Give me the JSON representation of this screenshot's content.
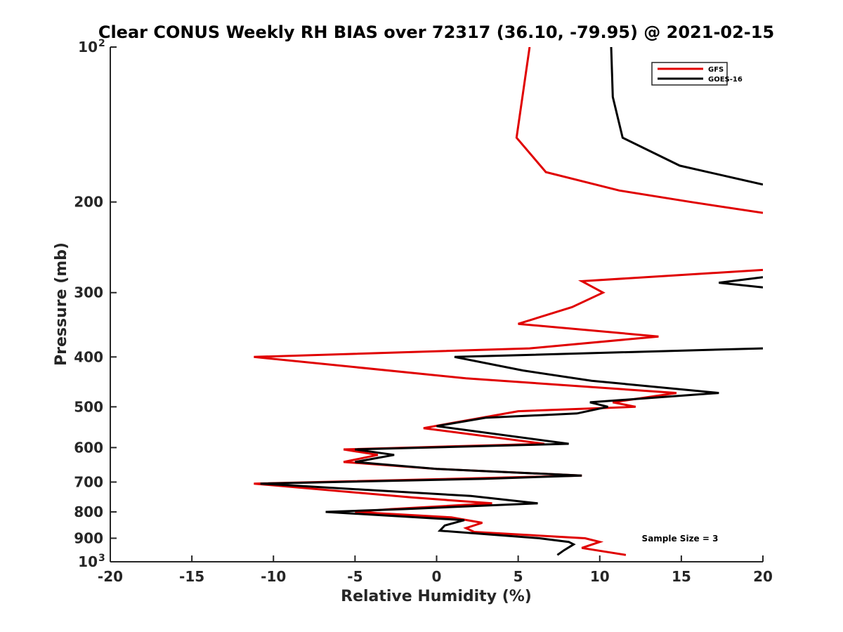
{
  "chart_data": {
    "type": "line",
    "title": "Clear CONUS Weekly RH BIAS over 72317 (36.10, -79.95) @ 2021-02-15",
    "xlabel": "Relative Humidity (%)",
    "ylabel": "Pressure (mb)",
    "xlim": [
      -20,
      20
    ],
    "ylim": [
      100,
      1000
    ],
    "y_scale": "log",
    "y_reversed": true,
    "grid": false,
    "legend_position": "top-right",
    "x_ticks": [
      "-20",
      "-15",
      "-10",
      "-5",
      "0",
      "5",
      "10",
      "15",
      "20"
    ],
    "y_ticks": [
      {
        "value": 100,
        "label": "10",
        "sup": "2"
      },
      {
        "value": 200,
        "label": "200",
        "sup": ""
      },
      {
        "value": 300,
        "label": "300",
        "sup": ""
      },
      {
        "value": 400,
        "label": "400",
        "sup": ""
      },
      {
        "value": 500,
        "label": "500",
        "sup": ""
      },
      {
        "value": 600,
        "label": "600",
        "sup": ""
      },
      {
        "value": 700,
        "label": "700",
        "sup": ""
      },
      {
        "value": 800,
        "label": "800",
        "sup": ""
      },
      {
        "value": 900,
        "label": "900",
        "sup": ""
      },
      {
        "value": 1000,
        "label": "10",
        "sup": "3"
      }
    ],
    "series": [
      {
        "name": "GFS",
        "color": "#e00000",
        "points": [
          [
            5.7,
            100
          ],
          [
            4.9,
            150
          ],
          [
            6.7,
            175
          ],
          [
            11.2,
            190
          ],
          [
            15.6,
            200
          ],
          [
            20.0,
            210
          ],
          [
            null,
            null
          ],
          [
            20.0,
            271
          ],
          [
            8.9,
            285
          ],
          [
            10.2,
            300
          ],
          [
            8.3,
            320
          ],
          [
            5.0,
            345
          ],
          [
            13.6,
            365
          ],
          [
            5.7,
            385
          ],
          [
            -11.2,
            400
          ],
          [
            1.8,
            440
          ],
          [
            14.7,
            470
          ],
          [
            10.8,
            490
          ],
          [
            12.2,
            500
          ],
          [
            5.0,
            510
          ],
          [
            -0.8,
            550
          ],
          [
            6.6,
            590
          ],
          [
            -5.7,
            605
          ],
          [
            -3.6,
            620
          ],
          [
            -5.7,
            640
          ],
          [
            0.0,
            660
          ],
          [
            8.9,
            680
          ],
          [
            1.0,
            690
          ],
          [
            -11.2,
            705
          ],
          [
            -1.5,
            750
          ],
          [
            3.4,
            770
          ],
          [
            -2.8,
            790
          ],
          [
            -5.0,
            800
          ],
          [
            0.9,
            820
          ],
          [
            2.8,
            840
          ],
          [
            1.8,
            860
          ],
          [
            2.3,
            875
          ],
          [
            9.1,
            900
          ],
          [
            10.0,
            915
          ],
          [
            8.9,
            940
          ],
          [
            11.6,
            970
          ]
        ]
      },
      {
        "name": "GOES-16",
        "color": "#000000",
        "points": [
          [
            10.7,
            100
          ],
          [
            10.8,
            125
          ],
          [
            11.4,
            150
          ],
          [
            14.9,
            170
          ],
          [
            20.0,
            185
          ],
          [
            null,
            null
          ],
          [
            20.0,
            280
          ],
          [
            17.3,
            287
          ],
          [
            20.0,
            293
          ],
          [
            null,
            null
          ],
          [
            20.0,
            385
          ],
          [
            1.1,
            400
          ],
          [
            5.3,
            425
          ],
          [
            9.5,
            445
          ],
          [
            17.3,
            470
          ],
          [
            9.4,
            490
          ],
          [
            10.5,
            500
          ],
          [
            8.6,
            515
          ],
          [
            3.0,
            525
          ],
          [
            0.0,
            545
          ],
          [
            8.1,
            590
          ],
          [
            -5.0,
            605
          ],
          [
            -2.6,
            620
          ],
          [
            -5.0,
            640
          ],
          [
            0.0,
            660
          ],
          [
            8.9,
            680
          ],
          [
            2.9,
            690
          ],
          [
            -10.8,
            705
          ],
          [
            2.1,
            745
          ],
          [
            6.2,
            770
          ],
          [
            -2.0,
            790
          ],
          [
            -6.8,
            800
          ],
          [
            1.7,
            830
          ],
          [
            0.5,
            850
          ],
          [
            0.2,
            870
          ],
          [
            6.3,
            900
          ],
          [
            8.1,
            915
          ],
          [
            8.4,
            925
          ],
          [
            7.8,
            950
          ],
          [
            7.4,
            970
          ]
        ]
      }
    ],
    "annotation": "Sample Size = 3"
  }
}
